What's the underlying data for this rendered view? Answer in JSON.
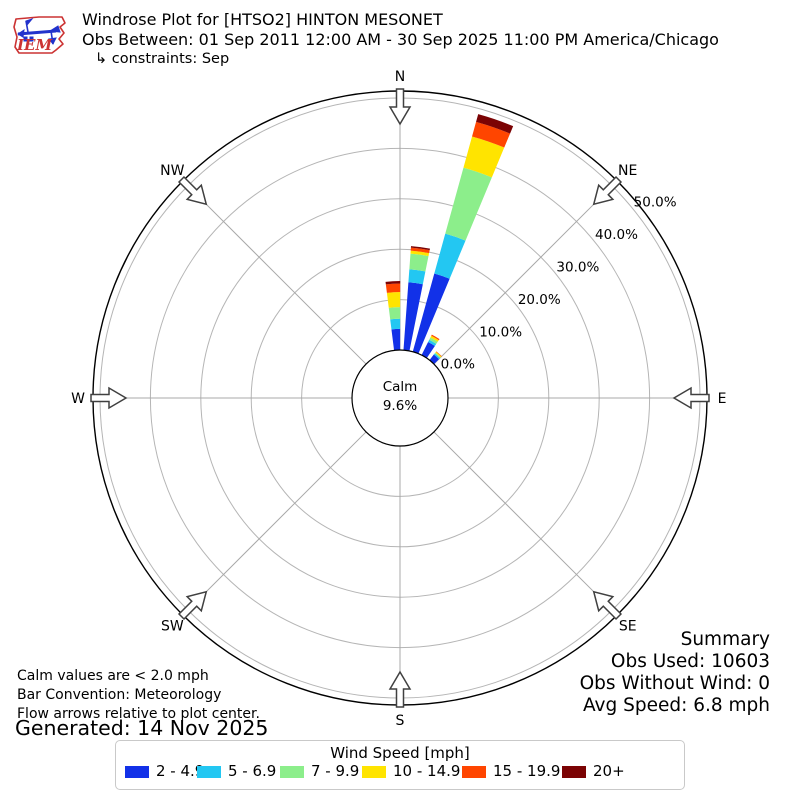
{
  "header": {
    "title": "Windrose Plot for [HTSO2] HINTON MESONET",
    "subtitle": "Obs Between: 01 Sep 2011 12:00 AM - 30 Sep 2025 11:00 PM America/Chicago",
    "constraints": "↳ constraints: Sep",
    "logo_text": "IEM"
  },
  "plot": {
    "compass_labels": [
      "N",
      "NE",
      "E",
      "SE",
      "S",
      "SW",
      "W",
      "NW"
    ],
    "ring_labels": [
      "0.0%",
      "10.0%",
      "20.0%",
      "30.0%",
      "40.0%",
      "50.0%"
    ],
    "calm": {
      "line1": "Calm",
      "line2": "9.6%"
    }
  },
  "chart_data": {
    "type": "windrose",
    "units": "mph",
    "calm_percent": 9.6,
    "radial_ticks_percent": [
      0,
      10,
      20,
      30,
      40,
      50
    ],
    "speed_bins": [
      {
        "label": "2 - 4.9",
        "color": "#1231e8"
      },
      {
        "label": "5 - 6.9",
        "color": "#23c7f2"
      },
      {
        "label": "7 - 9.9",
        "color": "#8cee8b"
      },
      {
        "label": "10 - 14.9",
        "color": "#ffe400"
      },
      {
        "label": "15 - 19.9",
        "color": "#ff4500"
      },
      {
        "label": "20+",
        "color": "#7b0304"
      }
    ],
    "bars": [
      {
        "dir_deg": 356.5,
        "frequencies_percent": [
          4.2,
          2.0,
          2.3,
          3.0,
          1.7,
          0.5
        ]
      },
      {
        "dir_deg": 7.75,
        "frequencies_percent": [
          13.5,
          2.6,
          3.1,
          0.6,
          0.6,
          0.3
        ]
      },
      {
        "dir_deg": 19.0,
        "frequencies_percent": [
          16.1,
          8.2,
          13.6,
          6.4,
          3.0,
          1.6
        ]
      },
      {
        "dir_deg": 30.25,
        "frequencies_percent": [
          2.9,
          0.5,
          0.5,
          0.4,
          0.25,
          0.0
        ]
      },
      {
        "dir_deg": 41.5,
        "frequencies_percent": [
          1.4,
          0.3,
          0.2,
          0.2,
          0.1,
          0.0
        ]
      }
    ]
  },
  "notes": {
    "calm": "Calm values are < 2.0 mph",
    "convention": "Bar Convention: Meteorology",
    "arrows": "Flow arrows relative to plot center.",
    "generated": "Generated: 14 Nov 2025"
  },
  "summary": {
    "title": "Summary",
    "obs_used": "Obs Used: 10603",
    "obs_without_wind": "Obs Without Wind: 0",
    "avg_speed": "Avg Speed: 6.8 mph"
  },
  "legend": {
    "title": "Wind Speed [mph]"
  },
  "colors": {
    "grid_ring": "#b5b5b5",
    "spoke": "#a8a8a8",
    "outer_circle": "#000000",
    "arrow_stroke": "#404040",
    "logo_red": "#cc3333",
    "logo_blue": "#2233cc"
  }
}
